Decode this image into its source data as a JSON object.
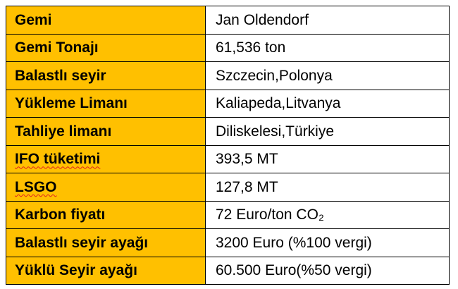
{
  "table": {
    "rows": [
      [
        "Gemi",
        "Jan Oldendorf"
      ],
      [
        "Gemi Tonajı",
        "61,536 ton"
      ],
      [
        "Balastlı seyir",
        "Szczecin,Polonya"
      ],
      [
        "Yükleme Limanı",
        "Kaliapeda,Litvanya"
      ],
      [
        "Tahliye limanı",
        "Diliskelesi,Türkiye"
      ],
      [
        "IFO tüketimi",
        "393,5 MT"
      ],
      [
        "LSGO",
        "127,8 MT"
      ],
      [
        "Karbon fiyatı",
        "72 Euro/ton CO₂"
      ],
      [
        "Balastlı seyir ayağı",
        "3200 Euro (%100 vergi)"
      ],
      [
        "Yüklü Seyir ayağı",
        "60.500 Euro(%50 vergi)"
      ]
    ]
  }
}
